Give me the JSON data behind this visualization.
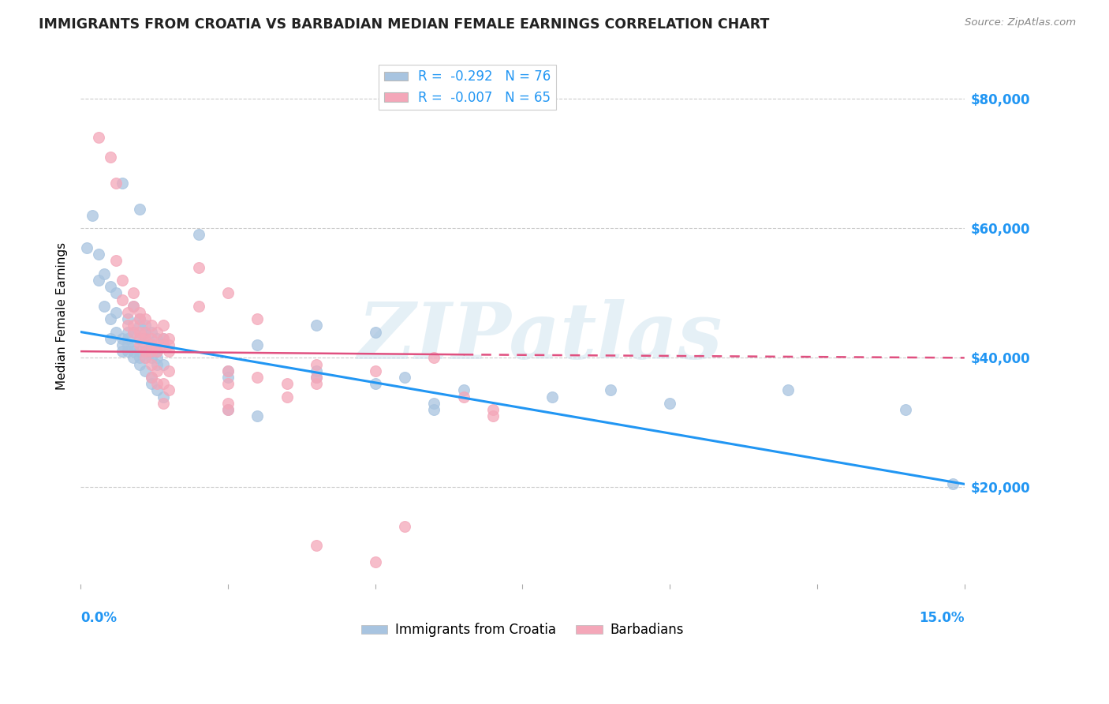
{
  "title": "IMMIGRANTS FROM CROATIA VS BARBADIAN MEDIAN FEMALE EARNINGS CORRELATION CHART",
  "source": "Source: ZipAtlas.com",
  "ylabel": "Median Female Earnings",
  "y_ticks": [
    20000,
    40000,
    60000,
    80000
  ],
  "y_tick_labels": [
    "$20,000",
    "$40,000",
    "$60,000",
    "$80,000"
  ],
  "x_range": [
    0.0,
    0.15
  ],
  "y_range": [
    5000,
    88000
  ],
  "legend_entries": [
    {
      "label": "R =  -0.292   N = 76",
      "color": "#a8c4e0"
    },
    {
      "label": "R =  -0.007   N = 65",
      "color": "#f4a7b9"
    }
  ],
  "legend_Croatia_label": "Immigrants from Croatia",
  "legend_Barbadian_label": "Barbadians",
  "watermark_text": "ZIPatlas",
  "blue_line": {
    "x": [
      0.0,
      0.15
    ],
    "y": [
      44000,
      20500
    ]
  },
  "pink_line_solid": {
    "x": [
      0.0,
      0.065
    ],
    "y": [
      41000,
      40500
    ]
  },
  "pink_line_dashed": {
    "x": [
      0.065,
      0.15
    ],
    "y": [
      40500,
      40000
    ]
  },
  "croatia_color": "#a8c4e0",
  "barbadian_color": "#f4a7b9",
  "croatia_scatter": [
    [
      0.001,
      57000
    ],
    [
      0.002,
      62000
    ],
    [
      0.003,
      56000
    ],
    [
      0.003,
      52000
    ],
    [
      0.004,
      53000
    ],
    [
      0.004,
      48000
    ],
    [
      0.005,
      51000
    ],
    [
      0.005,
      46000
    ],
    [
      0.005,
      43000
    ],
    [
      0.006,
      50000
    ],
    [
      0.006,
      47000
    ],
    [
      0.006,
      44000
    ],
    [
      0.007,
      67000
    ],
    [
      0.007,
      43000
    ],
    [
      0.007,
      42000
    ],
    [
      0.007,
      41000
    ],
    [
      0.008,
      46000
    ],
    [
      0.008,
      44000
    ],
    [
      0.008,
      43000
    ],
    [
      0.008,
      42000
    ],
    [
      0.008,
      41000
    ],
    [
      0.009,
      48000
    ],
    [
      0.009,
      44000
    ],
    [
      0.009,
      42000
    ],
    [
      0.009,
      41000
    ],
    [
      0.009,
      40000
    ],
    [
      0.01,
      63000
    ],
    [
      0.01,
      46000
    ],
    [
      0.01,
      45000
    ],
    [
      0.01,
      43000
    ],
    [
      0.01,
      41000
    ],
    [
      0.01,
      40000
    ],
    [
      0.01,
      39000
    ],
    [
      0.011,
      45000
    ],
    [
      0.011,
      44000
    ],
    [
      0.011,
      43000
    ],
    [
      0.011,
      42000
    ],
    [
      0.011,
      41000
    ],
    [
      0.011,
      40000
    ],
    [
      0.011,
      38000
    ],
    [
      0.012,
      44000
    ],
    [
      0.012,
      42000
    ],
    [
      0.012,
      41000
    ],
    [
      0.012,
      40000
    ],
    [
      0.012,
      37000
    ],
    [
      0.012,
      36000
    ],
    [
      0.013,
      43000
    ],
    [
      0.013,
      41000
    ],
    [
      0.013,
      40000
    ],
    [
      0.013,
      39000
    ],
    [
      0.013,
      35000
    ],
    [
      0.014,
      43000
    ],
    [
      0.014,
      42000
    ],
    [
      0.014,
      39000
    ],
    [
      0.014,
      34000
    ],
    [
      0.02,
      59000
    ],
    [
      0.025,
      38000
    ],
    [
      0.025,
      37000
    ],
    [
      0.025,
      32000
    ],
    [
      0.03,
      42000
    ],
    [
      0.03,
      31000
    ],
    [
      0.04,
      45000
    ],
    [
      0.04,
      38000
    ],
    [
      0.04,
      37000
    ],
    [
      0.05,
      44000
    ],
    [
      0.05,
      36000
    ],
    [
      0.055,
      37000
    ],
    [
      0.06,
      33000
    ],
    [
      0.06,
      32000
    ],
    [
      0.065,
      35000
    ],
    [
      0.08,
      34000
    ],
    [
      0.09,
      35000
    ],
    [
      0.1,
      33000
    ],
    [
      0.12,
      35000
    ],
    [
      0.14,
      32000
    ],
    [
      0.148,
      20500
    ]
  ],
  "barbadian_scatter": [
    [
      0.003,
      74000
    ],
    [
      0.005,
      71000
    ],
    [
      0.006,
      67000
    ],
    [
      0.006,
      55000
    ],
    [
      0.007,
      52000
    ],
    [
      0.007,
      49000
    ],
    [
      0.008,
      47000
    ],
    [
      0.008,
      45000
    ],
    [
      0.009,
      50000
    ],
    [
      0.009,
      48000
    ],
    [
      0.009,
      45000
    ],
    [
      0.009,
      44000
    ],
    [
      0.01,
      47000
    ],
    [
      0.01,
      46000
    ],
    [
      0.01,
      44000
    ],
    [
      0.01,
      43000
    ],
    [
      0.01,
      42000
    ],
    [
      0.011,
      46000
    ],
    [
      0.011,
      44000
    ],
    [
      0.011,
      43000
    ],
    [
      0.011,
      41000
    ],
    [
      0.011,
      40000
    ],
    [
      0.012,
      45000
    ],
    [
      0.012,
      43000
    ],
    [
      0.012,
      42000
    ],
    [
      0.012,
      41000
    ],
    [
      0.012,
      39000
    ],
    [
      0.012,
      37000
    ],
    [
      0.013,
      44000
    ],
    [
      0.013,
      42000
    ],
    [
      0.013,
      41000
    ],
    [
      0.013,
      38000
    ],
    [
      0.013,
      36000
    ],
    [
      0.014,
      45000
    ],
    [
      0.014,
      43000
    ],
    [
      0.014,
      42000
    ],
    [
      0.014,
      36000
    ],
    [
      0.014,
      33000
    ],
    [
      0.015,
      43000
    ],
    [
      0.015,
      42000
    ],
    [
      0.015,
      41000
    ],
    [
      0.015,
      38000
    ],
    [
      0.015,
      35000
    ],
    [
      0.02,
      54000
    ],
    [
      0.02,
      48000
    ],
    [
      0.025,
      50000
    ],
    [
      0.025,
      38000
    ],
    [
      0.025,
      36000
    ],
    [
      0.025,
      33000
    ],
    [
      0.025,
      32000
    ],
    [
      0.03,
      46000
    ],
    [
      0.03,
      37000
    ],
    [
      0.035,
      36000
    ],
    [
      0.035,
      34000
    ],
    [
      0.04,
      39000
    ],
    [
      0.04,
      37000
    ],
    [
      0.04,
      36000
    ],
    [
      0.05,
      38000
    ],
    [
      0.06,
      40000
    ],
    [
      0.04,
      11000
    ],
    [
      0.05,
      8500
    ],
    [
      0.055,
      14000
    ],
    [
      0.065,
      34000
    ],
    [
      0.07,
      32000
    ],
    [
      0.07,
      31000
    ]
  ]
}
